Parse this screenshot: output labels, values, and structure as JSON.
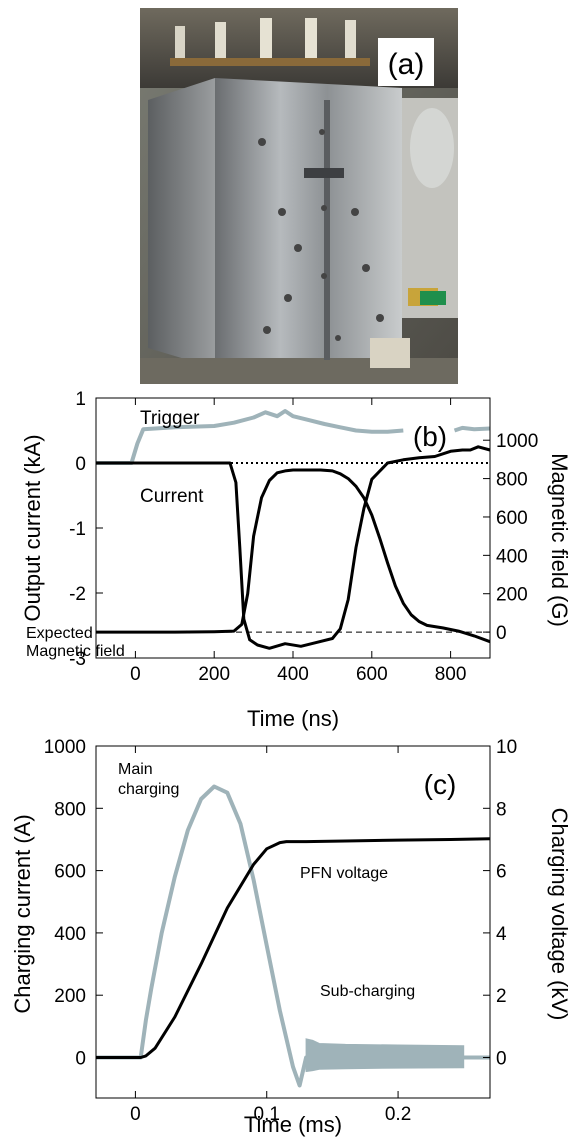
{
  "photo": {
    "label": "(a)"
  },
  "chart_data": [
    {
      "type": "line",
      "panel_label": "(b)",
      "xlabel": "Time (ns)",
      "ylabel": "Output current (kA)",
      "y2label": "Magnetic field (G)",
      "xlim": [
        -100,
        900
      ],
      "ylim": [
        -3,
        1
      ],
      "y2lim": [
        -135,
        1220
      ],
      "xticks": [
        0,
        200,
        400,
        600,
        800
      ],
      "yticks": [
        1,
        0,
        -1,
        -2,
        -3
      ],
      "y2ticks": [
        1000,
        800,
        600,
        400,
        200,
        0
      ],
      "annotations": [
        "Trigger",
        "Current",
        "Expected",
        "Magnetic field"
      ],
      "reference_lines": [
        {
          "axis": "y",
          "value": 0,
          "style": "dotted"
        },
        {
          "axis": "y2",
          "value": 0,
          "style": "dashed"
        }
      ],
      "series": [
        {
          "name": "Trigger",
          "axis": "y",
          "color": "#9fb3b9",
          "x": [
            -100,
            -10,
            5,
            20,
            100,
            200,
            250,
            300,
            330,
            360,
            380,
            400,
            440,
            480,
            520,
            560,
            600,
            640,
            680
          ],
          "y": [
            0,
            0,
            0.3,
            0.52,
            0.55,
            0.57,
            0.62,
            0.7,
            0.78,
            0.72,
            0.8,
            0.72,
            0.66,
            0.6,
            0.55,
            0.5,
            0.48,
            0.48,
            0.5
          ]
        },
        {
          "name": "Trigger_tail",
          "axis": "y",
          "color": "#9fb3b9",
          "x": [
            810,
            830,
            860,
            900
          ],
          "y": [
            0.5,
            0.54,
            0.52,
            0.53
          ]
        },
        {
          "name": "Current",
          "axis": "y",
          "color": "#000000",
          "x": [
            -100,
            100,
            200,
            240,
            255,
            265,
            275,
            290,
            310,
            340,
            380,
            420,
            460,
            500,
            520,
            540,
            560,
            580,
            600,
            640,
            680,
            720,
            760,
            800,
            830,
            850,
            870,
            900
          ],
          "y": [
            0,
            0,
            0,
            0,
            -0.3,
            -1.3,
            -2.4,
            -2.72,
            -2.8,
            -2.85,
            -2.78,
            -2.82,
            -2.76,
            -2.7,
            -2.55,
            -2.1,
            -1.3,
            -0.7,
            -0.25,
            0,
            0.05,
            0.08,
            0.1,
            0.18,
            0.2,
            0.2,
            0.25,
            0.2
          ]
        },
        {
          "name": "Expected Magnetic field",
          "axis": "y2",
          "color": "#000000",
          "x": [
            -100,
            100,
            200,
            250,
            270,
            285,
            300,
            320,
            340,
            360,
            380,
            400,
            430,
            470,
            500,
            520,
            540,
            560,
            580,
            600,
            620,
            640,
            660,
            680,
            700,
            720,
            740,
            780,
            820,
            860,
            900
          ],
          "y": [
            0,
            0,
            2,
            5,
            40,
            200,
            500,
            700,
            790,
            830,
            840,
            845,
            845,
            845,
            840,
            825,
            800,
            760,
            700,
            610,
            490,
            360,
            240,
            150,
            90,
            55,
            35,
            22,
            5,
            -20,
            -50
          ]
        }
      ]
    },
    {
      "type": "line",
      "panel_label": "(c)",
      "xlabel": "Time (ms)",
      "ylabel": "Charging current (A)",
      "y2label": "Charging voltage (kV)",
      "xlim": [
        -0.03,
        0.27
      ],
      "ylim": [
        -130,
        1000
      ],
      "y2lim": [
        -1.3,
        10
      ],
      "xticks": [
        "0",
        "0.1",
        "0.2"
      ],
      "yticks": [
        1000,
        800,
        600,
        400,
        200,
        0
      ],
      "y2ticks": [
        10,
        8,
        6,
        4,
        2,
        0
      ],
      "annotations": [
        "Main",
        "charging",
        "PFN voltage",
        "Sub-charging"
      ],
      "series": [
        {
          "name": "Main charging",
          "axis": "y",
          "color": "#9fb3b9",
          "x": [
            -0.03,
            0.004,
            0.006,
            0.008,
            0.012,
            0.02,
            0.03,
            0.04,
            0.05,
            0.06,
            0.07,
            0.08,
            0.09,
            0.1,
            0.11,
            0.12,
            0.125,
            0.13,
            0.27
          ],
          "y": [
            0,
            0,
            60,
            120,
            220,
            400,
            580,
            730,
            830,
            870,
            850,
            750,
            570,
            360,
            150,
            -30,
            -90,
            0,
            0
          ]
        },
        {
          "name": "PFN voltage",
          "axis": "y2",
          "color": "#000000",
          "x": [
            -0.03,
            0.004,
            0.008,
            0.015,
            0.03,
            0.05,
            0.07,
            0.09,
            0.1,
            0.11,
            0.115,
            0.13,
            0.16,
            0.2,
            0.24,
            0.27
          ],
          "y": [
            0,
            0,
            0.05,
            0.3,
            1.3,
            3.0,
            4.8,
            6.2,
            6.7,
            6.9,
            6.93,
            6.93,
            6.95,
            6.98,
            7.0,
            7.02
          ]
        },
        {
          "name": "Sub-charging",
          "axis": "y",
          "color": "#9fb3b9",
          "envelope": true,
          "x": [
            0.13,
            0.135,
            0.14,
            0.16,
            0.2,
            0.25
          ],
          "upper": [
            60,
            55,
            45,
            42,
            40,
            38
          ],
          "lower": [
            -45,
            -42,
            -38,
            -36,
            -34,
            -33
          ]
        }
      ]
    }
  ]
}
